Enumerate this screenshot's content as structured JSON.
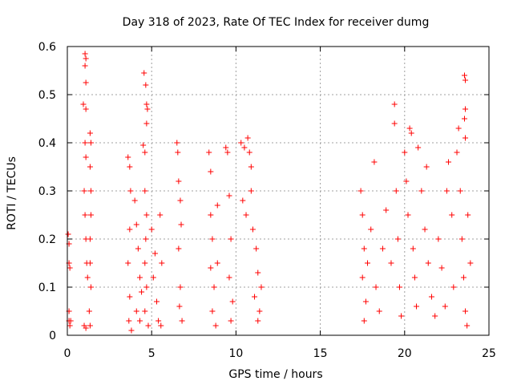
{
  "chart_data": {
    "type": "scatter",
    "title": "Day 318 of 2023, Rate Of TEC Index for receiver dumg",
    "xlabel": "GPS time / hours",
    "ylabel": "ROTI / TECUs",
    "xlim": [
      0,
      25
    ],
    "ylim": [
      0,
      0.6
    ],
    "x_ticks": [
      "0",
      "5",
      "10",
      "15",
      "20",
      "25"
    ],
    "y_ticks": [
      "0",
      "0.1",
      "0.2",
      "0.3",
      "0.4",
      "0.5",
      "0.6"
    ],
    "grid": true,
    "grid_style": "dotted",
    "legend": "none",
    "marker": "plus",
    "color": "#ff0000",
    "series": [
      {
        "points": [
          [
            0.05,
            0.21
          ],
          [
            0.1,
            0.19
          ],
          [
            0.1,
            0.15
          ],
          [
            0.1,
            0.05
          ],
          [
            0.1,
            0.03
          ],
          [
            0.15,
            0.02
          ],
          [
            0.2,
            0.03
          ],
          [
            0.15,
            0.14
          ],
          [
            0.95,
            0.48
          ],
          [
            1.05,
            0.4
          ],
          [
            1.1,
            0.37
          ],
          [
            1.0,
            0.3
          ],
          [
            1.05,
            0.25
          ],
          [
            1.1,
            0.2
          ],
          [
            1.15,
            0.15
          ],
          [
            1.2,
            0.12
          ],
          [
            1.0,
            0.02
          ],
          [
            1.1,
            0.015
          ],
          [
            1.05,
            0.585
          ],
          [
            1.1,
            0.575
          ],
          [
            1.05,
            0.56
          ],
          [
            1.1,
            0.525
          ],
          [
            1.1,
            0.47
          ],
          [
            1.35,
            0.42
          ],
          [
            1.4,
            0.4
          ],
          [
            1.35,
            0.35
          ],
          [
            1.4,
            0.3
          ],
          [
            1.4,
            0.25
          ],
          [
            1.35,
            0.2
          ],
          [
            1.35,
            0.15
          ],
          [
            1.4,
            0.1
          ],
          [
            1.3,
            0.05
          ],
          [
            1.35,
            0.02
          ],
          [
            3.6,
            0.37
          ],
          [
            3.7,
            0.35
          ],
          [
            3.75,
            0.3
          ],
          [
            3.7,
            0.22
          ],
          [
            3.6,
            0.15
          ],
          [
            3.7,
            0.08
          ],
          [
            3.65,
            0.03
          ],
          [
            3.8,
            0.01
          ],
          [
            4.0,
            0.28
          ],
          [
            4.1,
            0.23
          ],
          [
            4.2,
            0.18
          ],
          [
            4.3,
            0.12
          ],
          [
            4.1,
            0.05
          ],
          [
            4.4,
            0.09
          ],
          [
            4.3,
            0.03
          ],
          [
            4.5,
            0.395
          ],
          [
            4.6,
            0.38
          ],
          [
            4.6,
            0.3
          ],
          [
            4.7,
            0.25
          ],
          [
            4.65,
            0.2
          ],
          [
            4.6,
            0.15
          ],
          [
            4.7,
            0.1
          ],
          [
            4.6,
            0.05
          ],
          [
            4.8,
            0.02
          ],
          [
            4.55,
            0.545
          ],
          [
            4.65,
            0.52
          ],
          [
            4.7,
            0.48
          ],
          [
            4.75,
            0.47
          ],
          [
            4.7,
            0.44
          ],
          [
            5.0,
            0.22
          ],
          [
            5.2,
            0.17
          ],
          [
            5.1,
            0.12
          ],
          [
            5.3,
            0.07
          ],
          [
            5.4,
            0.03
          ],
          [
            5.5,
            0.25
          ],
          [
            5.6,
            0.15
          ],
          [
            5.55,
            0.02
          ],
          [
            6.5,
            0.4
          ],
          [
            6.55,
            0.38
          ],
          [
            6.6,
            0.32
          ],
          [
            6.7,
            0.28
          ],
          [
            6.75,
            0.23
          ],
          [
            6.6,
            0.18
          ],
          [
            6.7,
            0.1
          ],
          [
            6.8,
            0.03
          ],
          [
            6.65,
            0.06
          ],
          [
            8.4,
            0.38
          ],
          [
            8.5,
            0.34
          ],
          [
            8.5,
            0.25
          ],
          [
            8.6,
            0.2
          ],
          [
            8.5,
            0.14
          ],
          [
            8.7,
            0.1
          ],
          [
            8.6,
            0.05
          ],
          [
            8.8,
            0.02
          ],
          [
            8.9,
            0.27
          ],
          [
            8.9,
            0.15
          ],
          [
            9.4,
            0.39
          ],
          [
            9.5,
            0.38
          ],
          [
            9.6,
            0.29
          ],
          [
            9.7,
            0.2
          ],
          [
            9.6,
            0.12
          ],
          [
            9.8,
            0.07
          ],
          [
            9.7,
            0.03
          ],
          [
            10.3,
            0.4
          ],
          [
            10.5,
            0.39
          ],
          [
            10.7,
            0.41
          ],
          [
            10.8,
            0.38
          ],
          [
            10.9,
            0.35
          ],
          [
            10.4,
            0.28
          ],
          [
            10.6,
            0.25
          ],
          [
            10.9,
            0.3
          ],
          [
            11.0,
            0.22
          ],
          [
            11.2,
            0.18
          ],
          [
            11.3,
            0.13
          ],
          [
            11.1,
            0.08
          ],
          [
            11.4,
            0.05
          ],
          [
            11.5,
            0.1
          ],
          [
            11.3,
            0.03
          ],
          [
            17.4,
            0.3
          ],
          [
            17.5,
            0.25
          ],
          [
            17.6,
            0.18
          ],
          [
            17.5,
            0.12
          ],
          [
            17.7,
            0.07
          ],
          [
            17.6,
            0.03
          ],
          [
            17.8,
            0.15
          ],
          [
            18.0,
            0.22
          ],
          [
            18.2,
            0.36
          ],
          [
            18.3,
            0.1
          ],
          [
            18.5,
            0.05
          ],
          [
            18.7,
            0.18
          ],
          [
            18.9,
            0.26
          ],
          [
            19.2,
            0.15
          ],
          [
            19.4,
            0.48
          ],
          [
            19.4,
            0.44
          ],
          [
            19.5,
            0.3
          ],
          [
            19.6,
            0.2
          ],
          [
            19.7,
            0.1
          ],
          [
            19.8,
            0.04
          ],
          [
            20.0,
            0.38
          ],
          [
            20.1,
            0.32
          ],
          [
            20.3,
            0.43
          ],
          [
            20.4,
            0.42
          ],
          [
            20.2,
            0.25
          ],
          [
            20.5,
            0.18
          ],
          [
            20.6,
            0.12
          ],
          [
            20.7,
            0.06
          ],
          [
            20.8,
            0.39
          ],
          [
            21.0,
            0.3
          ],
          [
            21.2,
            0.22
          ],
          [
            21.3,
            0.35
          ],
          [
            21.4,
            0.15
          ],
          [
            21.6,
            0.08
          ],
          [
            21.8,
            0.04
          ],
          [
            22.0,
            0.2
          ],
          [
            22.2,
            0.14
          ],
          [
            22.4,
            0.06
          ],
          [
            22.5,
            0.3
          ],
          [
            22.6,
            0.36
          ],
          [
            22.8,
            0.25
          ],
          [
            22.9,
            0.1
          ],
          [
            23.1,
            0.38
          ],
          [
            23.2,
            0.43
          ],
          [
            23.3,
            0.3
          ],
          [
            23.4,
            0.2
          ],
          [
            23.5,
            0.12
          ],
          [
            23.6,
            0.05
          ],
          [
            23.7,
            0.02
          ],
          [
            23.55,
            0.54
          ],
          [
            23.6,
            0.53
          ],
          [
            23.6,
            0.47
          ],
          [
            23.55,
            0.45
          ],
          [
            23.6,
            0.41
          ],
          [
            23.75,
            0.25
          ],
          [
            23.9,
            0.15
          ]
        ]
      }
    ]
  }
}
